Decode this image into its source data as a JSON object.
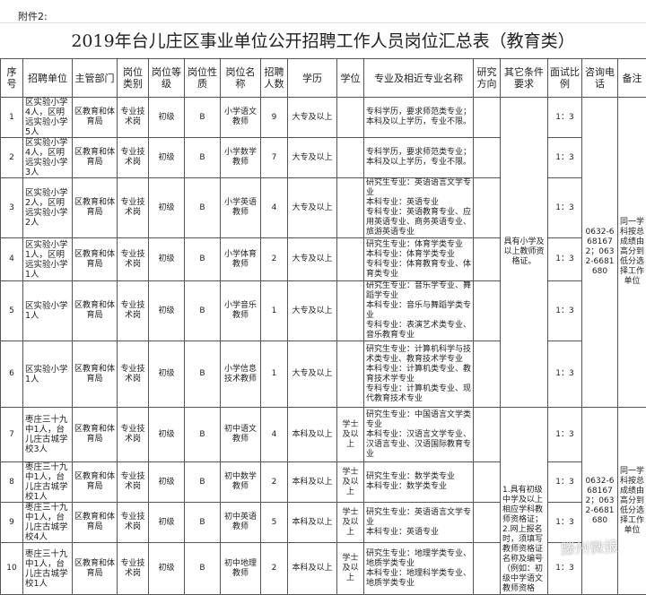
{
  "annex": "附件2:",
  "title": "2019年台儿庄区事业单位公开招聘工作人员岗位汇总表（教育类）",
  "headers": [
    "序号",
    "招聘单位",
    "主管部门",
    "岗位类别",
    "岗位等级",
    "岗位性质",
    "岗位名称",
    "招聘人数",
    "学历",
    "学位",
    "专业及相近专业名称",
    "研究方向",
    "其它条件要求",
    "面试比例",
    "咨询电话",
    "备注"
  ],
  "rows": [
    {
      "no": "1",
      "unit": "区实验小学4人，区明远实验小学5人",
      "dept": "区教育和体育局",
      "cat": "专业技术岗",
      "level": "初级",
      "nature": "B",
      "name": "小学语文教师",
      "count": "9",
      "edu": "大专及以上",
      "degree": "",
      "major": "专科学历，要求师范类专业；本科及以上学历，专业不限。",
      "research": "",
      "ratio": "1：3"
    },
    {
      "no": "2",
      "unit": "区实验小学4人，区明远实验小学3人",
      "dept": "区教育和体育局",
      "cat": "专业技术岗",
      "level": "初级",
      "nature": "B",
      "name": "小学数学教师",
      "count": "7",
      "edu": "大专及以上",
      "degree": "",
      "major": "专科学历，要求师范类专业；本科及以上学历，专业不限。",
      "research": "",
      "ratio": "1：3"
    },
    {
      "no": "3",
      "unit": "区实验小学2人，区明远实验小学2人",
      "dept": "区教育和体育局",
      "cat": "专业技术岗",
      "level": "初级",
      "nature": "B",
      "name": "小学英语教师",
      "count": "4",
      "edu": "大专及以上",
      "degree": "",
      "major": "研究生专业：英语语言文学专业\n本科专业：英语专业\n专科专业：英语教育专业、应用英语专业、商务英语专业、旅游英语专业",
      "research": "",
      "ratio": "1：3"
    },
    {
      "no": "4",
      "unit": "区实验小学1人，区明远实验小学1人",
      "dept": "区教育和体育局",
      "cat": "专业技术岗",
      "level": "初级",
      "nature": "B",
      "name": "小学体育教师",
      "count": "2",
      "edu": "大专及以上",
      "degree": "",
      "major": "研究生专业：体育学类专业\n本科专业：体育学类专业\n专科专业：体育教育专业、体育类专业",
      "research": "",
      "ratio": "1：3"
    },
    {
      "no": "5",
      "unit": "区实验小学1人",
      "dept": "区教育和体育局",
      "cat": "专业技术岗",
      "level": "初级",
      "nature": "B",
      "name": "小学音乐教师",
      "count": "1",
      "edu": "大专及以上",
      "degree": "",
      "major": "研究生专业：音乐学专业、舞蹈学专业\n本科专业：音乐与舞蹈学类专业\n专科专业：表演艺术类专业、音乐教育专业",
      "research": "",
      "ratio": "1：3"
    },
    {
      "no": "6",
      "unit": "区实验小学1人",
      "dept": "区教育和体育局",
      "cat": "专业技术岗",
      "level": "初级",
      "nature": "B",
      "name": "小学信息技术教师",
      "count": "1",
      "edu": "大专及以上",
      "degree": "",
      "major": "研究生专业：计算机科学与技术类专业、教育技术学专业\n本科专业：计算机类专业、教育技术学专业\n专科专业：计算机类专业、现代教育技术专业",
      "research": "",
      "ratio": "1：3"
    },
    {
      "no": "7",
      "unit": "枣庄三十九中1人，台儿庄古城学校3人",
      "dept": "区教育和体育局",
      "cat": "专业技术岗",
      "level": "初级",
      "nature": "B",
      "name": "初中语文教师",
      "count": "4",
      "edu": "本科及以上",
      "degree": "学士及以上",
      "major": "研究生专业：中国语言文学类专业\n本科专业：汉语言文学专业、汉语言专业、汉语国际教育专业",
      "research": "",
      "ratio": "1：3"
    },
    {
      "no": "8",
      "unit": "枣庄三十九中1人，台儿庄古城学校1人",
      "dept": "区教育和体育局",
      "cat": "专业技术岗",
      "level": "初级",
      "nature": "B",
      "name": "初中数学教师",
      "count": "2",
      "edu": "本科及以上",
      "degree": "学士及以上",
      "major": "研究生专业：数学类专业\n本科专业：数学类专业",
      "research": "",
      "ratio": "1：3"
    },
    {
      "no": "9",
      "unit": "枣庄三十九中1人，台儿庄古城学校4人",
      "dept": "区教育和体育局",
      "cat": "专业技术岗",
      "level": "初级",
      "nature": "B",
      "name": "初中英语教师",
      "count": "5",
      "edu": "本科及以上",
      "degree": "学士及以上",
      "major": "研究生专业：英语语言文学专业\n本科专业：英语专业",
      "research": "",
      "ratio": "1：3"
    },
    {
      "no": "10",
      "unit": "枣庄三十九中1人，台儿庄古城学校1人",
      "dept": "区教育和体育局",
      "cat": "专业技术岗",
      "level": "初级",
      "nature": "B",
      "name": "初中地理教师",
      "count": "2",
      "edu": "本科及以上",
      "degree": "学士及以上",
      "major": "研究生专业：地理学类专业、地质学类专业\n本科专业：地理科学类专业、地质学类专业",
      "research": "",
      "ratio": "1：3"
    }
  ],
  "groups": [
    {
      "conditions": "具有小学及以上教师资格证。",
      "phone": "0632-6681672；0632-6681680",
      "remark": "同一学科按总成绩由高分到低分选择工作单位"
    },
    {
      "conditions": "1.具有初级中学及以上相应学科教师资格证；2.网上报名时，须填写教师资格证名称及编号（例如：初级中学语文教师资格",
      "phone": "0632-6681672；0632-6681680",
      "remark": "同一学科按总成绩由高分到低分选择工作单位"
    }
  ],
  "watermark": "滕州微报"
}
